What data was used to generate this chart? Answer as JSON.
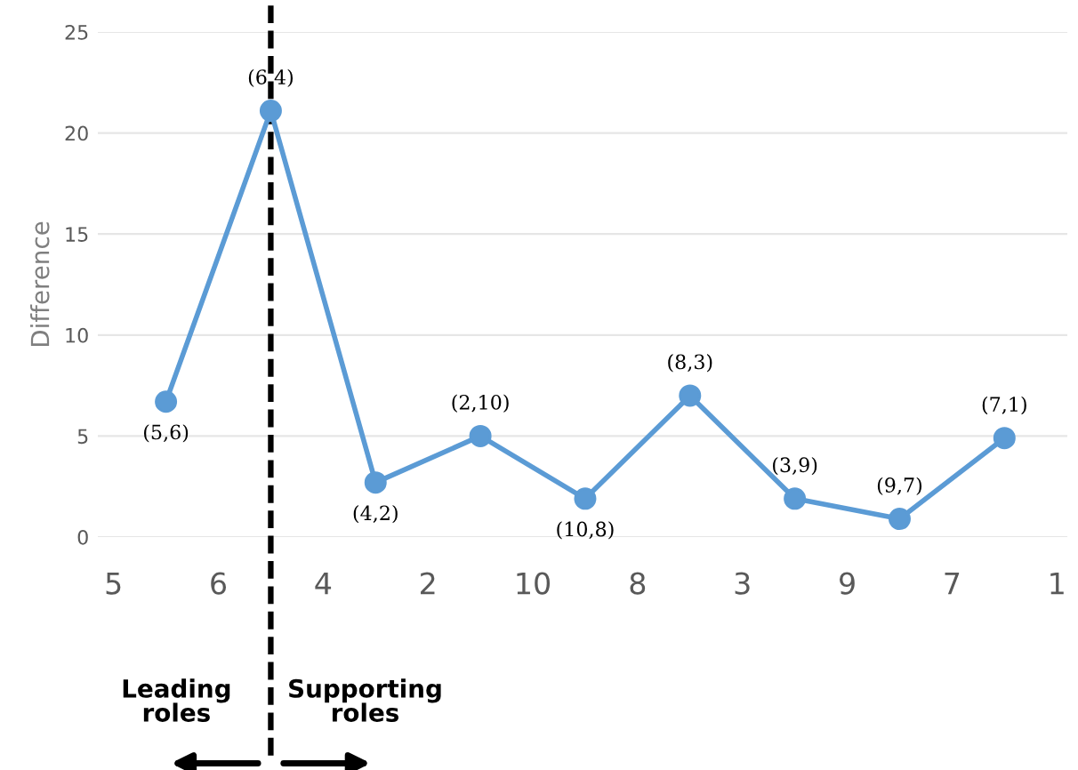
{
  "chart_data": {
    "type": "line",
    "ylabel": "Difference",
    "categories": [
      "5",
      null,
      "6",
      null,
      "4",
      null,
      "2",
      null,
      "10",
      null,
      "8",
      null,
      "3",
      null,
      "9",
      null,
      "7",
      null,
      "1"
    ],
    "series": [
      {
        "color": "#5b9bd5",
        "values": [
          null,
          6.7,
          null,
          21.1,
          null,
          2.7,
          null,
          5.0,
          null,
          1.9,
          null,
          7.0,
          null,
          1.9,
          null,
          0.9,
          null,
          4.9,
          null
        ]
      }
    ],
    "ylim": [
      0,
      25
    ],
    "yticks": [
      0,
      5,
      10,
      15,
      20,
      25
    ],
    "grid": "y",
    "marker": "circle",
    "line_style": "solid",
    "annotations": [
      {
        "text": "(5,6)",
        "y": 6.7
      },
      {
        "text": "(6,4)",
        "y": 21.1
      },
      {
        "text": "(4,2)",
        "y": 2.7
      },
      {
        "text": "(2,10)",
        "y": 5.0
      },
      {
        "text": "(10,8)",
        "y": 1.9
      },
      {
        "text": "(8,3)",
        "y": 7.0
      },
      {
        "text": "(3,9)",
        "y": 1.9
      },
      {
        "text": "(9,7)",
        "y": 0.9
      },
      {
        "text": "(7,1)",
        "y": 4.9
      },
      "Leading\nroles",
      "Supporting\nroles"
    ]
  }
}
